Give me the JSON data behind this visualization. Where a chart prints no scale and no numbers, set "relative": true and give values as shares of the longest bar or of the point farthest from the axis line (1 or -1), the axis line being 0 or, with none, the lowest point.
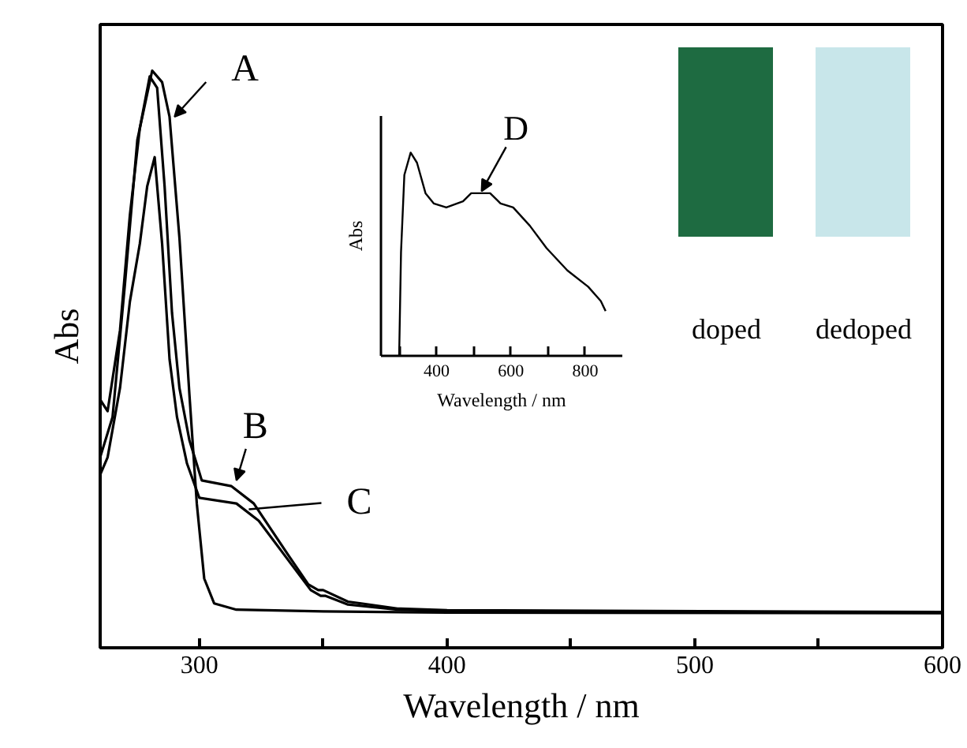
{
  "chart_data": [
    {
      "type": "line",
      "xlabel": "Wavelength / nm",
      "ylabel": "Abs",
      "relative": true,
      "xlim": [
        260,
        600
      ],
      "xticks": [
        300,
        {
          "value": 350,
          "label": null
        },
        400,
        {
          "value": 450,
          "label": null
        },
        500,
        {
          "value": 550,
          "label": null
        },
        600
      ],
      "grid": false,
      "line_style": "solid",
      "marker": "none",
      "series": [
        {
          "color": "#000000",
          "x": [
            260,
            265,
            270,
            275,
            281,
            285,
            288,
            292,
            296,
            299,
            302,
            306,
            315,
            350,
            400,
            600
          ],
          "values": [
            0.33,
            0.4,
            0.63,
            0.88,
            1.0,
            0.98,
            0.92,
            0.71,
            0.44,
            0.25,
            0.12,
            0.077,
            0.066,
            0.063,
            0.061,
            0.06
          ]
        },
        {
          "color": "#000000",
          "x": [
            260,
            263,
            268,
            272,
            276,
            280,
            283,
            286,
            289,
            292,
            296,
            301,
            313,
            322,
            336,
            344,
            348,
            350,
            360,
            380,
            400,
            600
          ],
          "values": [
            0.43,
            0.41,
            0.55,
            0.75,
            0.9,
            0.99,
            0.97,
            0.8,
            0.58,
            0.45,
            0.36,
            0.29,
            0.28,
            0.25,
            0.16,
            0.11,
            0.1,
            0.1,
            0.08,
            0.068,
            0.065,
            0.062
          ]
        },
        {
          "color": "#000000",
          "x": [
            260,
            263,
            268,
            272,
            276,
            279,
            282,
            285,
            288,
            291,
            295,
            300,
            315,
            324,
            338,
            345,
            349,
            351,
            360,
            380,
            400,
            600
          ],
          "values": [
            0.3,
            0.33,
            0.45,
            0.6,
            0.7,
            0.8,
            0.85,
            0.7,
            0.5,
            0.4,
            0.32,
            0.26,
            0.25,
            0.22,
            0.14,
            0.1,
            0.09,
            0.09,
            0.075,
            0.066,
            0.064,
            0.061
          ]
        }
      ],
      "annotations": [
        {
          "text": "A",
          "x": 290,
          "y": 0.92
        },
        {
          "text": "B",
          "x": 315,
          "y": 0.29
        },
        {
          "text": "C",
          "x": 320,
          "y": 0.24
        },
        "doped",
        "dedoped"
      ]
    },
    {
      "type": "line",
      "xlabel": "Wavelength / nm",
      "ylabel": "Abs",
      "relative": true,
      "xlim": [
        250,
        900
      ],
      "xticks": [
        {
          "value": 300,
          "label": null
        },
        400,
        {
          "value": 500,
          "label": null
        },
        600,
        {
          "value": 700,
          "label": null
        },
        800
      ],
      "grid": false,
      "line_style": "solid",
      "marker": "none",
      "series": [
        {
          "color": "#000000",
          "x": [
            299,
            304,
            313,
            330,
            347,
            370,
            392,
            426,
            471,
            493,
            544,
            572,
            606,
            651,
            696,
            752,
            808,
            842,
            855
          ],
          "values": [
            0,
            0.51,
            0.89,
            1.0,
            0.95,
            0.8,
            0.75,
            0.73,
            0.76,
            0.8,
            0.8,
            0.75,
            0.73,
            0.64,
            0.53,
            0.42,
            0.34,
            0.27,
            0.22
          ]
        }
      ],
      "annotations": [
        {
          "text": "D",
          "x": 521,
          "y": 0.81
        }
      ]
    }
  ]
}
